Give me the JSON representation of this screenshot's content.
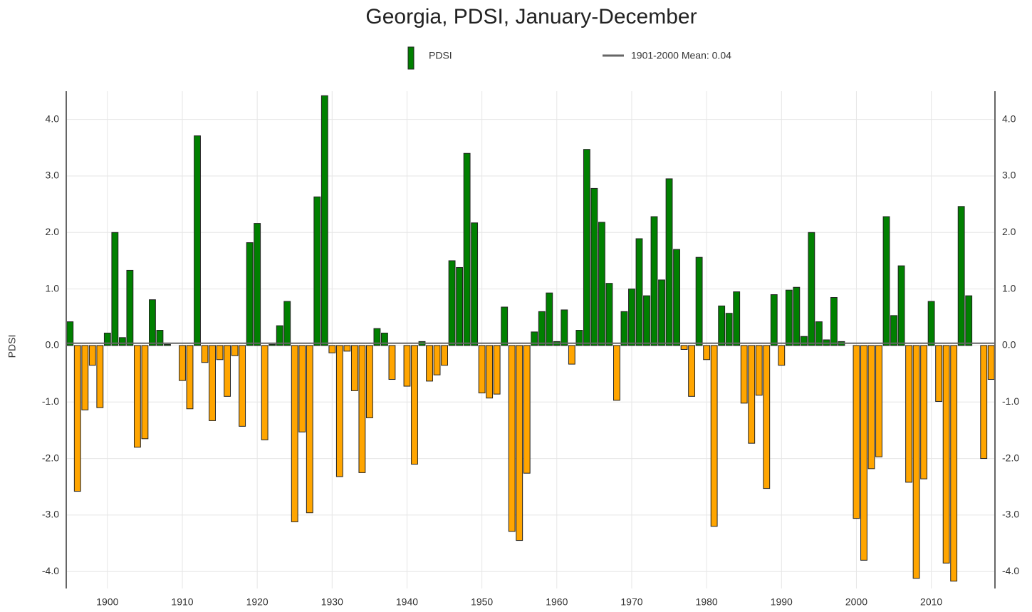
{
  "chart_data": {
    "type": "bar",
    "title": "Georgia, PDSI, January-December",
    "ylabel": "PDSI",
    "x": [
      1895,
      1896,
      1897,
      1898,
      1899,
      1900,
      1901,
      1902,
      1903,
      1904,
      1905,
      1906,
      1907,
      1908,
      1909,
      1910,
      1911,
      1912,
      1913,
      1914,
      1915,
      1916,
      1917,
      1918,
      1919,
      1920,
      1921,
      1922,
      1923,
      1924,
      1925,
      1926,
      1927,
      1928,
      1929,
      1930,
      1931,
      1932,
      1933,
      1934,
      1935,
      1936,
      1937,
      1938,
      1939,
      1940,
      1941,
      1942,
      1943,
      1944,
      1945,
      1946,
      1947,
      1948,
      1949,
      1950,
      1951,
      1952,
      1953,
      1954,
      1955,
      1956,
      1957,
      1958,
      1959,
      1960,
      1961,
      1962,
      1963,
      1964,
      1965,
      1966,
      1967,
      1968,
      1969,
      1970,
      1971,
      1972,
      1973,
      1974,
      1975,
      1976,
      1977,
      1978,
      1979,
      1980,
      1981,
      1982,
      1983,
      1984,
      1985,
      1986,
      1987,
      1988,
      1989,
      1990,
      1991,
      1992,
      1993,
      1994,
      1995,
      1996,
      1997,
      1998,
      1999,
      2000,
      2001,
      2002,
      2003,
      2004,
      2005,
      2006,
      2007,
      2008,
      2009,
      2010,
      2011,
      2012,
      2013,
      2014,
      2015,
      2016,
      2017,
      2018
    ],
    "series": [
      {
        "name": "PDSI",
        "color": "#008000",
        "negative_color": "#ffa500",
        "values": [
          0.42,
          -2.58,
          -1.14,
          -0.35,
          -1.1,
          0.22,
          2.0,
          0.14,
          1.33,
          -1.8,
          -1.65,
          0.81,
          0.27,
          0.02,
          0.0,
          -0.62,
          -1.12,
          3.71,
          -0.3,
          -1.33,
          -0.25,
          -0.9,
          -0.18,
          -1.43,
          1.82,
          2.16,
          -1.67,
          0.02,
          0.35,
          0.78,
          -3.12,
          -1.53,
          -2.96,
          2.63,
          4.42,
          -0.13,
          -2.32,
          -0.1,
          -0.8,
          -2.25,
          -1.28,
          0.3,
          0.22,
          -0.6,
          0.0,
          -0.72,
          -2.1,
          0.07,
          -0.63,
          -0.52,
          -0.35,
          1.5,
          1.38,
          3.4,
          2.17,
          -0.84,
          -0.93,
          -0.86,
          0.68,
          -3.29,
          -3.45,
          -2.26,
          0.24,
          0.6,
          0.93,
          0.07,
          0.63,
          -0.33,
          0.27,
          3.47,
          2.78,
          2.18,
          1.1,
          -0.97,
          0.6,
          1.0,
          1.89,
          0.88,
          2.28,
          1.16,
          2.95,
          1.7,
          -0.07,
          -0.9,
          1.56,
          -0.25,
          -3.2,
          0.7,
          0.57,
          0.95,
          -1.02,
          -1.73,
          -0.88,
          -2.53,
          0.9,
          -0.35,
          0.98,
          1.03,
          0.16,
          2.0,
          0.42,
          0.1,
          0.85,
          0.07,
          0.0,
          -3.06,
          -3.8,
          -2.18,
          -1.97,
          2.28,
          0.53,
          1.41,
          -2.42,
          -4.12,
          -2.36,
          0.78,
          -0.99,
          -3.85,
          -4.17,
          2.46,
          0.88,
          0.0,
          -2.0,
          -0.6
        ]
      }
    ],
    "mean": 0.04,
    "mean_label": "1901-2000 Mean: 0.04",
    "mean_color": "#666666",
    "xlim": [
      1894.5,
      2018.5
    ],
    "xticks": [
      1900,
      1910,
      1920,
      1930,
      1940,
      1950,
      1960,
      1970,
      1980,
      1990,
      2000,
      2010
    ],
    "ylim": [
      -4.3,
      4.5
    ],
    "yticks": [
      {
        "value": -4,
        "label": "-4.0"
      },
      {
        "value": -3,
        "label": "-3.0"
      },
      {
        "value": -2,
        "label": "-2.0"
      },
      {
        "value": -1,
        "label": "-1.0"
      },
      {
        "value": 0,
        "label": "0.0"
      },
      {
        "value": 1,
        "label": "1.0"
      },
      {
        "value": 2,
        "label": "2.0"
      },
      {
        "value": 3,
        "label": "3.0"
      },
      {
        "value": 4,
        "label": "4.0"
      }
    ],
    "grid": true
  }
}
